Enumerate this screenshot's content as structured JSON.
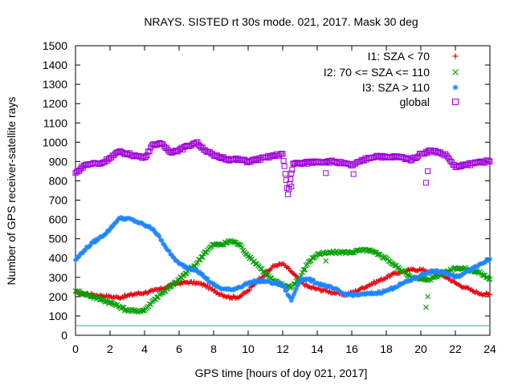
{
  "chart_data": {
    "type": "scatter",
    "title": "NRAYS. SISTED rt 30s mode. 021, 2017. Mask 30 deg",
    "xlabel": "GPS time [hours of doy 021, 2017]",
    "ylabel": "Number of GPS receiver-satellite rays",
    "xlim": [
      0,
      24
    ],
    "ylim": [
      0,
      1500
    ],
    "xticks": [
      "0",
      "2",
      "4",
      "6",
      "8",
      "10",
      "12",
      "14",
      "16",
      "18",
      "20",
      "22",
      "24"
    ],
    "yticks": [
      "0",
      "100",
      "200",
      "300",
      "400",
      "500",
      "600",
      "700",
      "800",
      "900",
      "1000",
      "1100",
      "1200",
      "1300",
      "1400",
      "1500"
    ],
    "legend_position": "top-right",
    "reference_line": {
      "y": 50,
      "color": "#5fb4b4"
    },
    "series": [
      {
        "name": "I1: SZA < 70",
        "marker": "+",
        "color": "#e8000b",
        "x": [
          0,
          0.5,
          1,
          1.5,
          2,
          2.5,
          3,
          3.5,
          4,
          4.5,
          5,
          5.5,
          6,
          6.5,
          7,
          7.5,
          8,
          8.5,
          9,
          9.5,
          10,
          10.5,
          11,
          11.5,
          12,
          12.5,
          13,
          13.5,
          14,
          14.5,
          15,
          15.5,
          16,
          16.5,
          17,
          17.5,
          18,
          18.5,
          19,
          19.5,
          20,
          20.5,
          21,
          21.5,
          22,
          22.5,
          23,
          23.5,
          24
        ],
        "values": [
          220,
          215,
          210,
          205,
          200,
          195,
          205,
          215,
          220,
          230,
          240,
          260,
          270,
          275,
          270,
          260,
          230,
          210,
          195,
          200,
          230,
          280,
          320,
          360,
          370,
          330,
          280,
          250,
          240,
          230,
          220,
          210,
          220,
          240,
          260,
          280,
          300,
          320,
          330,
          340,
          340,
          330,
          320,
          300,
          270,
          250,
          230,
          215,
          210
        ]
      },
      {
        "name": "I2: 70 <= SZA <= 110",
        "marker": "x",
        "color": "#00a000",
        "x": [
          0,
          0.5,
          1,
          1.5,
          2,
          2.5,
          3,
          3.5,
          4,
          4.5,
          5,
          5.5,
          6,
          6.5,
          7,
          7.5,
          8,
          8.5,
          9,
          9.5,
          10,
          10.5,
          11,
          11.5,
          12,
          12.5,
          13,
          13.5,
          14,
          14.5,
          15,
          15.5,
          16,
          16.5,
          17,
          17.5,
          18,
          18.5,
          19,
          19.5,
          20,
          20.5,
          21,
          21.5,
          22,
          22.5,
          23,
          23.5,
          24
        ],
        "values": [
          230,
          215,
          200,
          185,
          170,
          150,
          130,
          125,
          130,
          180,
          220,
          250,
          290,
          330,
          370,
          430,
          470,
          470,
          490,
          470,
          410,
          370,
          320,
          280,
          260,
          250,
          300,
          380,
          420,
          425,
          430,
          430,
          430,
          440,
          440,
          420,
          400,
          360,
          330,
          300,
          290,
          290,
          310,
          330,
          350,
          345,
          335,
          320,
          290
        ]
      },
      {
        "name": "I3: SZA > 110",
        "marker": "*",
        "color": "#1e86ff",
        "x": [
          0,
          0.5,
          1,
          1.5,
          2,
          2.5,
          3,
          3.5,
          4,
          4.5,
          5,
          5.5,
          6,
          6.5,
          7,
          7.5,
          8,
          8.5,
          9,
          9.5,
          10,
          10.5,
          11,
          11.5,
          12,
          12.5,
          13,
          13.5,
          14,
          14.5,
          15,
          15.5,
          16,
          16.5,
          17,
          17.5,
          18,
          18.5,
          19,
          19.5,
          20,
          20.5,
          21,
          21.5,
          22,
          22.5,
          23,
          23.5,
          24
        ],
        "values": [
          390,
          440,
          480,
          510,
          550,
          605,
          605,
          590,
          570,
          550,
          490,
          420,
          370,
          350,
          340,
          300,
          260,
          240,
          235,
          250,
          270,
          280,
          280,
          270,
          260,
          180,
          290,
          290,
          270,
          255,
          240,
          215,
          210,
          210,
          215,
          220,
          230,
          250,
          270,
          290,
          310,
          330,
          330,
          320,
          300,
          320,
          350,
          370,
          395
        ]
      },
      {
        "name": "global",
        "marker": "square",
        "color": "#a000d8",
        "x": [
          0,
          0.5,
          1,
          1.5,
          2,
          2.5,
          3,
          3.5,
          4,
          4.5,
          5,
          5.5,
          6,
          6.5,
          7,
          7.5,
          8,
          8.5,
          9,
          9.5,
          10,
          10.5,
          11,
          11.5,
          12,
          12.3,
          12.6,
          13,
          13.5,
          14,
          14.5,
          15,
          15.5,
          16,
          16.5,
          17,
          17.5,
          18,
          18.5,
          19,
          19.5,
          20,
          20.5,
          21,
          21.5,
          22,
          22.5,
          23,
          23.5,
          24
        ],
        "values": [
          840,
          880,
          890,
          890,
          920,
          950,
          940,
          930,
          920,
          990,
          990,
          950,
          960,
          980,
          1000,
          960,
          930,
          920,
          910,
          910,
          900,
          910,
          920,
          930,
          940,
          730,
          890,
          890,
          895,
          900,
          900,
          900,
          890,
          880,
          900,
          920,
          930,
          920,
          925,
          920,
          910,
          940,
          955,
          950,
          930,
          870,
          880,
          890,
          900,
          900
        ]
      }
    ],
    "scattered_points": [
      {
        "series": "global",
        "x": 14.5,
        "y": 840
      },
      {
        "series": "global",
        "x": 16.1,
        "y": 835
      },
      {
        "series": "global",
        "x": 20.3,
        "y": 790
      },
      {
        "series": "global",
        "x": 20.4,
        "y": 850
      },
      {
        "series": "global",
        "x": 12.5,
        "y": 770
      },
      {
        "series": "I2: 70 <= SZA <= 110",
        "x": 20.3,
        "y": 145
      },
      {
        "series": "I2: 70 <= SZA <= 110",
        "x": 20.4,
        "y": 200
      },
      {
        "series": "I2: 70 <= SZA <= 110",
        "x": 14.5,
        "y": 385
      }
    ]
  }
}
